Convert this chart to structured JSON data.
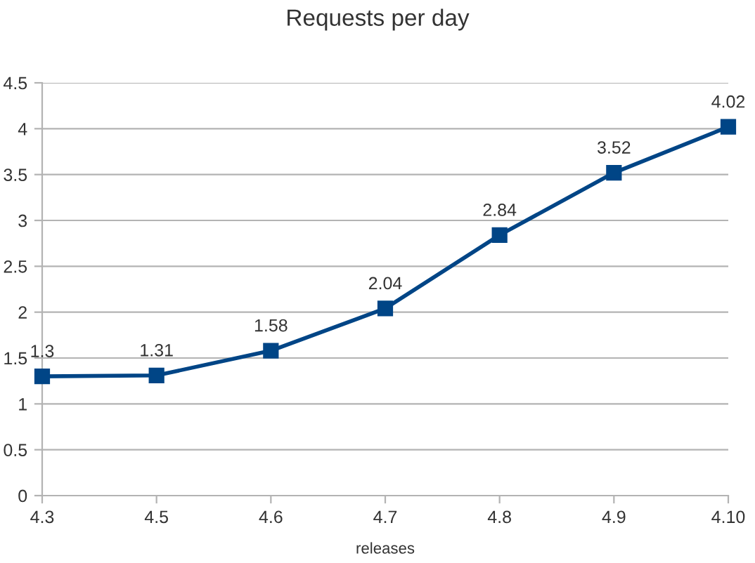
{
  "chart_data": {
    "type": "line",
    "title": "Requests per day",
    "xlabel": "releases",
    "categories": [
      "4.3",
      "4.5",
      "4.6",
      "4.7",
      "4.8",
      "4.9",
      "4.10"
    ],
    "series": [
      {
        "color": "#004586",
        "values": [
          1.3,
          1.31,
          1.58,
          2.04,
          2.84,
          3.52,
          4.02
        ]
      }
    ],
    "ylim": [
      0,
      4.5
    ],
    "yticks": [
      0,
      0.5,
      1,
      1.5,
      2,
      2.5,
      3,
      3.5,
      4,
      4.5
    ],
    "grid": "y",
    "marker": "square",
    "line_style": "solid",
    "data_labels": true,
    "legend": false
  }
}
